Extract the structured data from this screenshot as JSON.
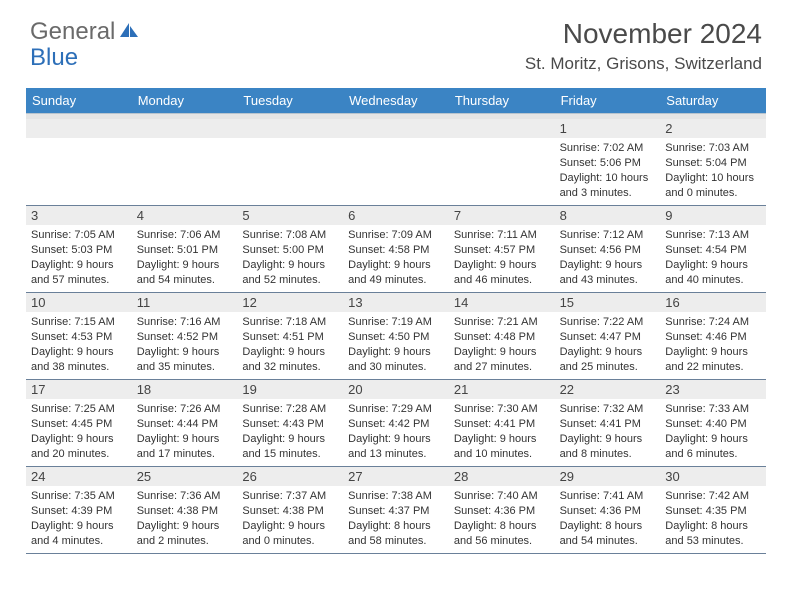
{
  "logo": {
    "text1": "General",
    "text2": "Blue"
  },
  "header": {
    "title": "November 2024",
    "location": "St. Moritz, Grisons, Switzerland"
  },
  "calendar": {
    "type": "table",
    "columns": [
      "Sunday",
      "Monday",
      "Tuesday",
      "Wednesday",
      "Thursday",
      "Friday",
      "Saturday"
    ],
    "colors": {
      "header_bg": "#3b84c4",
      "header_text": "#ffffff",
      "daynum_bg": "#ededed",
      "border": "#6a8099",
      "text": "#333333"
    },
    "fontsize": {
      "header": 13,
      "daynum": 13,
      "body": 11
    },
    "weeks": [
      [
        null,
        null,
        null,
        null,
        null,
        {
          "n": "1",
          "sunrise": "7:02 AM",
          "sunset": "5:06 PM",
          "dl": "10 hours and 3 minutes."
        },
        {
          "n": "2",
          "sunrise": "7:03 AM",
          "sunset": "5:04 PM",
          "dl": "10 hours and 0 minutes."
        }
      ],
      [
        {
          "n": "3",
          "sunrise": "7:05 AM",
          "sunset": "5:03 PM",
          "dl": "9 hours and 57 minutes."
        },
        {
          "n": "4",
          "sunrise": "7:06 AM",
          "sunset": "5:01 PM",
          "dl": "9 hours and 54 minutes."
        },
        {
          "n": "5",
          "sunrise": "7:08 AM",
          "sunset": "5:00 PM",
          "dl": "9 hours and 52 minutes."
        },
        {
          "n": "6",
          "sunrise": "7:09 AM",
          "sunset": "4:58 PM",
          "dl": "9 hours and 49 minutes."
        },
        {
          "n": "7",
          "sunrise": "7:11 AM",
          "sunset": "4:57 PM",
          "dl": "9 hours and 46 minutes."
        },
        {
          "n": "8",
          "sunrise": "7:12 AM",
          "sunset": "4:56 PM",
          "dl": "9 hours and 43 minutes."
        },
        {
          "n": "9",
          "sunrise": "7:13 AM",
          "sunset": "4:54 PM",
          "dl": "9 hours and 40 minutes."
        }
      ],
      [
        {
          "n": "10",
          "sunrise": "7:15 AM",
          "sunset": "4:53 PM",
          "dl": "9 hours and 38 minutes."
        },
        {
          "n": "11",
          "sunrise": "7:16 AM",
          "sunset": "4:52 PM",
          "dl": "9 hours and 35 minutes."
        },
        {
          "n": "12",
          "sunrise": "7:18 AM",
          "sunset": "4:51 PM",
          "dl": "9 hours and 32 minutes."
        },
        {
          "n": "13",
          "sunrise": "7:19 AM",
          "sunset": "4:50 PM",
          "dl": "9 hours and 30 minutes."
        },
        {
          "n": "14",
          "sunrise": "7:21 AM",
          "sunset": "4:48 PM",
          "dl": "9 hours and 27 minutes."
        },
        {
          "n": "15",
          "sunrise": "7:22 AM",
          "sunset": "4:47 PM",
          "dl": "9 hours and 25 minutes."
        },
        {
          "n": "16",
          "sunrise": "7:24 AM",
          "sunset": "4:46 PM",
          "dl": "9 hours and 22 minutes."
        }
      ],
      [
        {
          "n": "17",
          "sunrise": "7:25 AM",
          "sunset": "4:45 PM",
          "dl": "9 hours and 20 minutes."
        },
        {
          "n": "18",
          "sunrise": "7:26 AM",
          "sunset": "4:44 PM",
          "dl": "9 hours and 17 minutes."
        },
        {
          "n": "19",
          "sunrise": "7:28 AM",
          "sunset": "4:43 PM",
          "dl": "9 hours and 15 minutes."
        },
        {
          "n": "20",
          "sunrise": "7:29 AM",
          "sunset": "4:42 PM",
          "dl": "9 hours and 13 minutes."
        },
        {
          "n": "21",
          "sunrise": "7:30 AM",
          "sunset": "4:41 PM",
          "dl": "9 hours and 10 minutes."
        },
        {
          "n": "22",
          "sunrise": "7:32 AM",
          "sunset": "4:41 PM",
          "dl": "9 hours and 8 minutes."
        },
        {
          "n": "23",
          "sunrise": "7:33 AM",
          "sunset": "4:40 PM",
          "dl": "9 hours and 6 minutes."
        }
      ],
      [
        {
          "n": "24",
          "sunrise": "7:35 AM",
          "sunset": "4:39 PM",
          "dl": "9 hours and 4 minutes."
        },
        {
          "n": "25",
          "sunrise": "7:36 AM",
          "sunset": "4:38 PM",
          "dl": "9 hours and 2 minutes."
        },
        {
          "n": "26",
          "sunrise": "7:37 AM",
          "sunset": "4:38 PM",
          "dl": "9 hours and 0 minutes."
        },
        {
          "n": "27",
          "sunrise": "7:38 AM",
          "sunset": "4:37 PM",
          "dl": "8 hours and 58 minutes."
        },
        {
          "n": "28",
          "sunrise": "7:40 AM",
          "sunset": "4:36 PM",
          "dl": "8 hours and 56 minutes."
        },
        {
          "n": "29",
          "sunrise": "7:41 AM",
          "sunset": "4:36 PM",
          "dl": "8 hours and 54 minutes."
        },
        {
          "n": "30",
          "sunrise": "7:42 AM",
          "sunset": "4:35 PM",
          "dl": "8 hours and 53 minutes."
        }
      ]
    ]
  }
}
